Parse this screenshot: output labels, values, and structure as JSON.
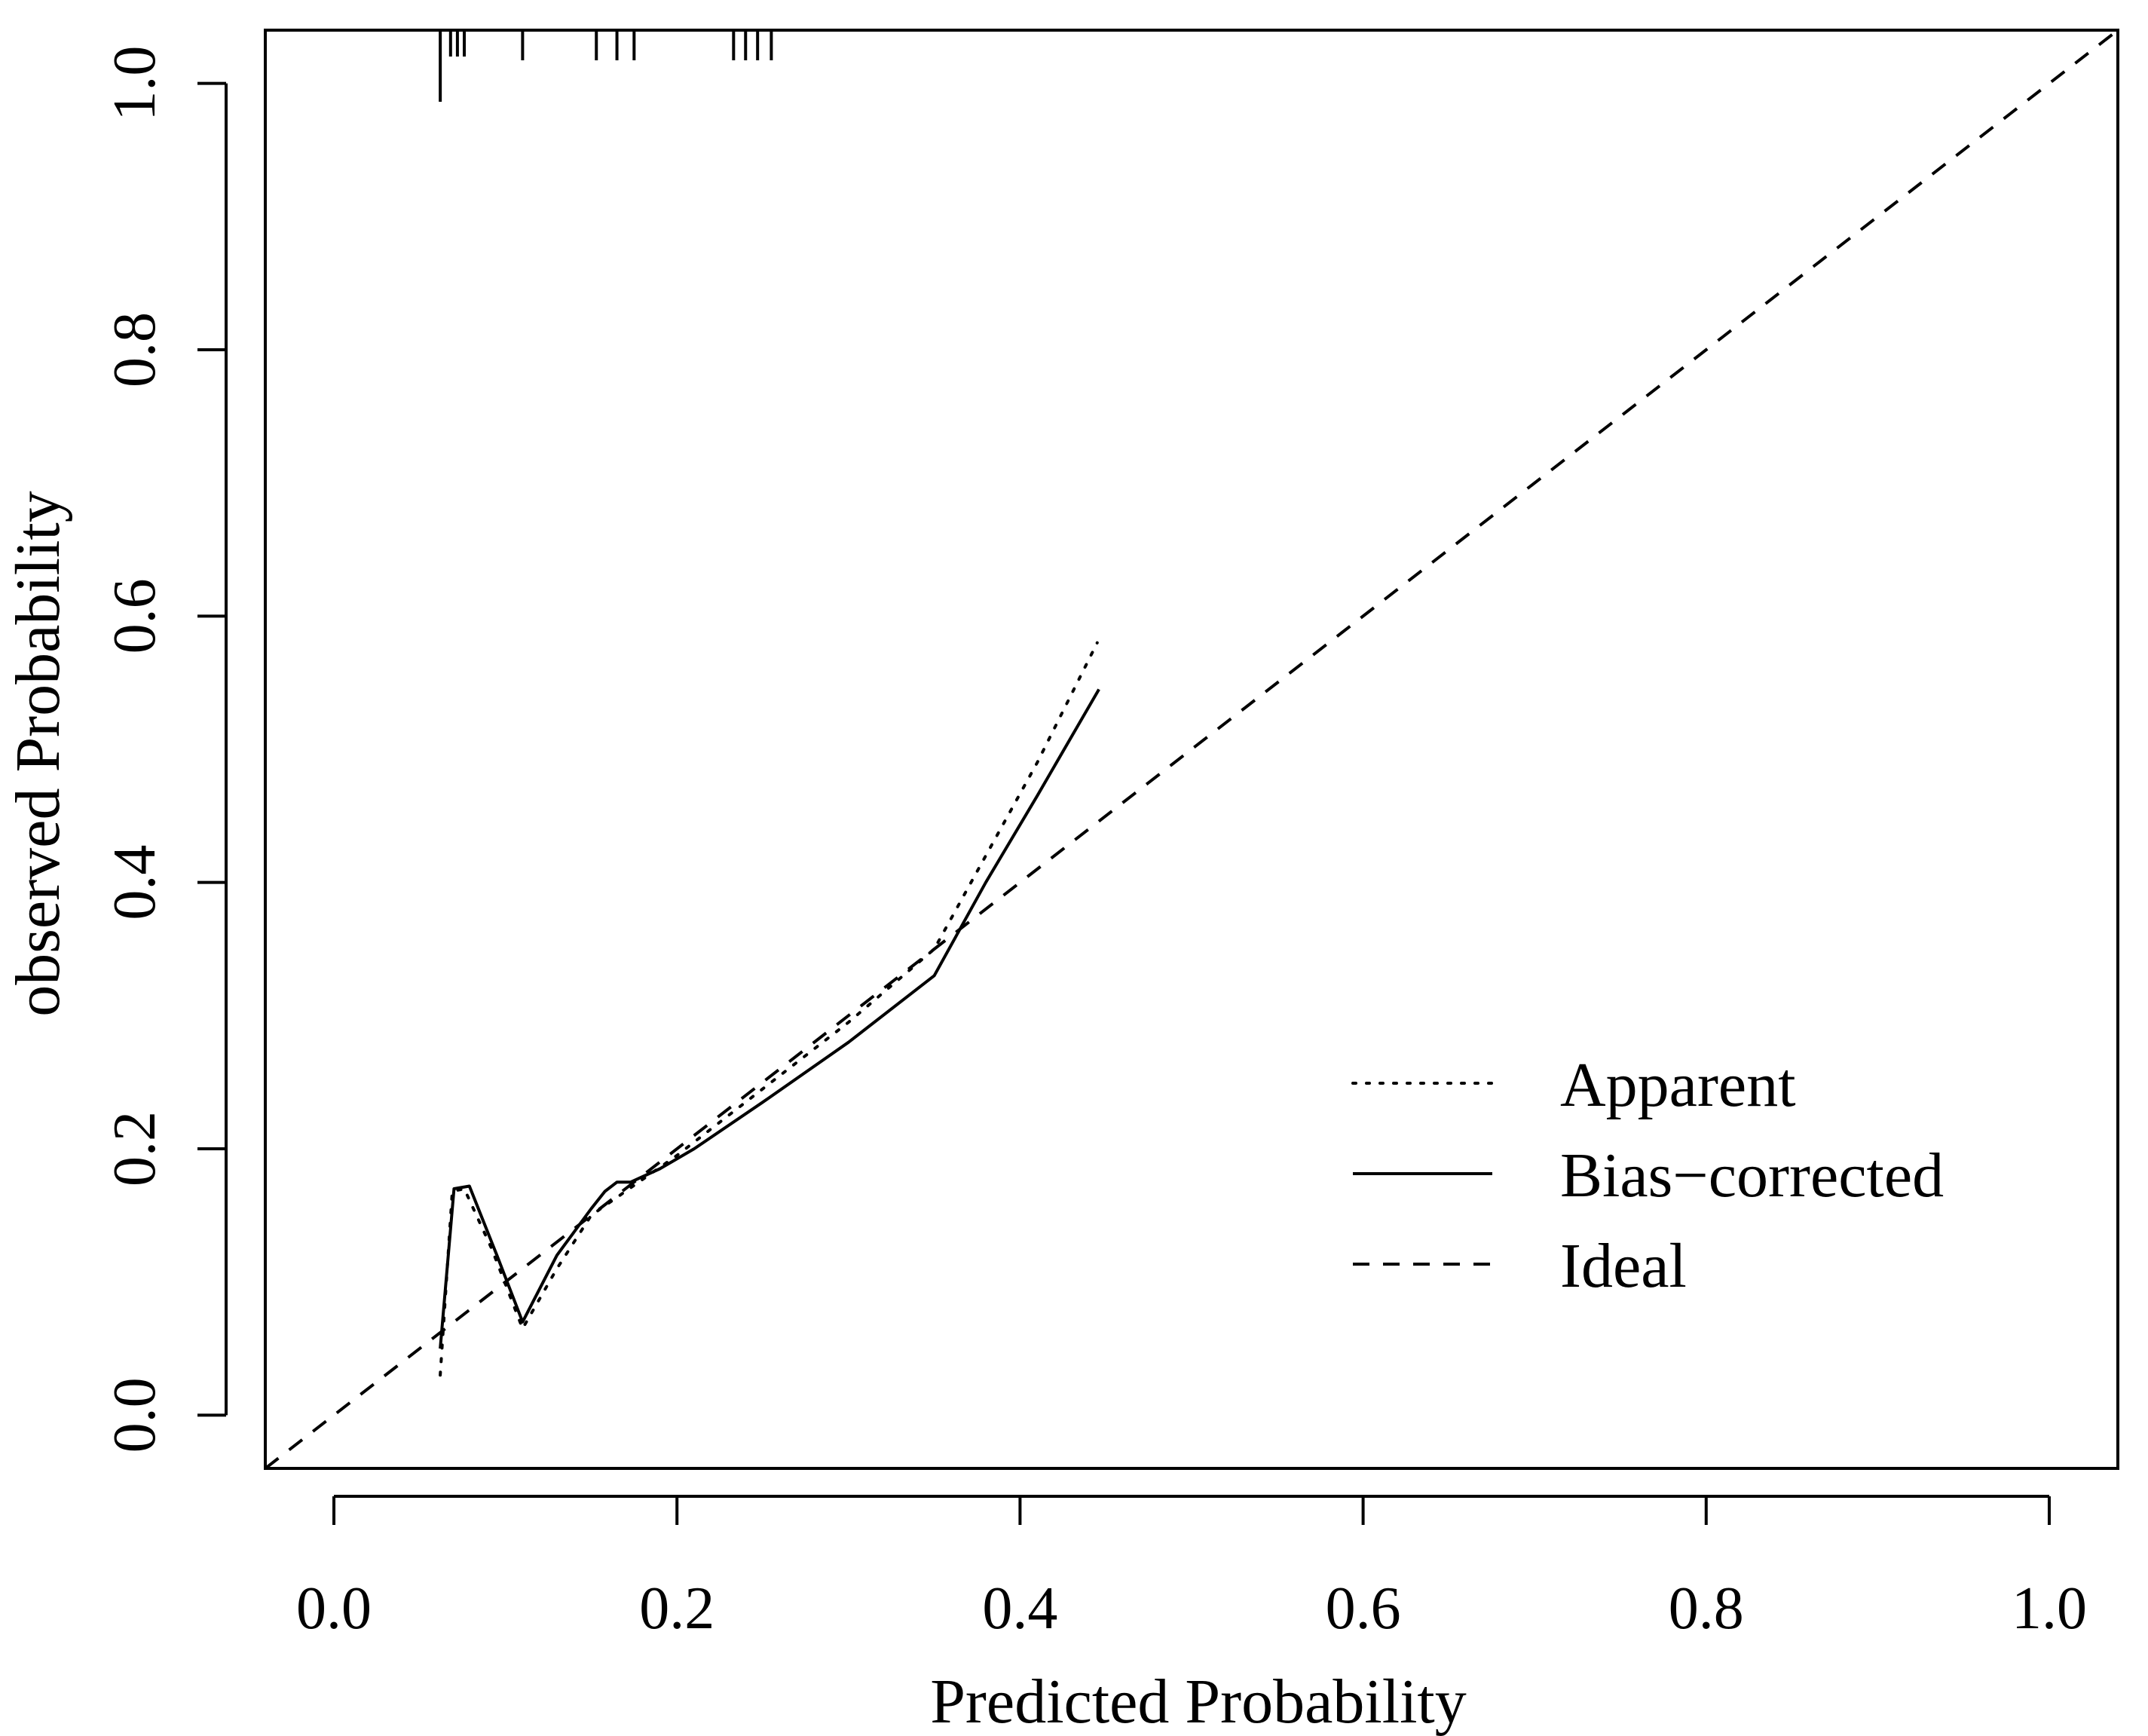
{
  "chart_data": {
    "type": "line",
    "title": "",
    "xlabel": "Predicted Probability",
    "ylabel": "observed Probability",
    "xlim": [
      -0.04,
      1.04
    ],
    "ylim": [
      -0.04,
      1.04
    ],
    "x_ticks": [
      "0.0",
      "0.2",
      "0.4",
      "0.6",
      "0.8",
      "1.0"
    ],
    "y_ticks": [
      "0.0",
      "0.2",
      "0.4",
      "0.6",
      "0.8",
      "1.0"
    ],
    "grid": false,
    "legend": {
      "position": "bottom-right",
      "entries": [
        "Apparent",
        "Bias−corrected",
        "Ideal"
      ]
    },
    "series": [
      {
        "name": "Apparent",
        "style": "dotted",
        "x": [
          0.062,
          0.069,
          0.076,
          0.092,
          0.11,
          0.13,
          0.15,
          0.17,
          0.2,
          0.25,
          0.3,
          0.35,
          0.38,
          0.41,
          0.445
        ],
        "y": [
          0.03,
          0.168,
          0.17,
          0.125,
          0.065,
          0.11,
          0.15,
          0.168,
          0.195,
          0.245,
          0.295,
          0.35,
          0.42,
          0.49,
          0.58
        ]
      },
      {
        "name": "Bias−corrected",
        "style": "solid",
        "x": [
          0.062,
          0.07,
          0.079,
          0.095,
          0.11,
          0.13,
          0.15,
          0.158,
          0.165,
          0.173,
          0.19,
          0.21,
          0.25,
          0.3,
          0.35,
          0.38,
          0.41,
          0.446
        ],
        "y": [
          0.05,
          0.17,
          0.172,
          0.12,
          0.07,
          0.12,
          0.155,
          0.168,
          0.175,
          0.175,
          0.185,
          0.2,
          0.235,
          0.28,
          0.33,
          0.4,
          0.465,
          0.545
        ]
      },
      {
        "name": "Ideal",
        "style": "dashed",
        "x": [
          -0.04,
          1.04
        ],
        "y": [
          -0.04,
          1.04
        ]
      }
    ],
    "rug_top": [
      0.062,
      0.068,
      0.072,
      0.076,
      0.11,
      0.153,
      0.165,
      0.175,
      0.233,
      0.24,
      0.247,
      0.255
    ]
  }
}
